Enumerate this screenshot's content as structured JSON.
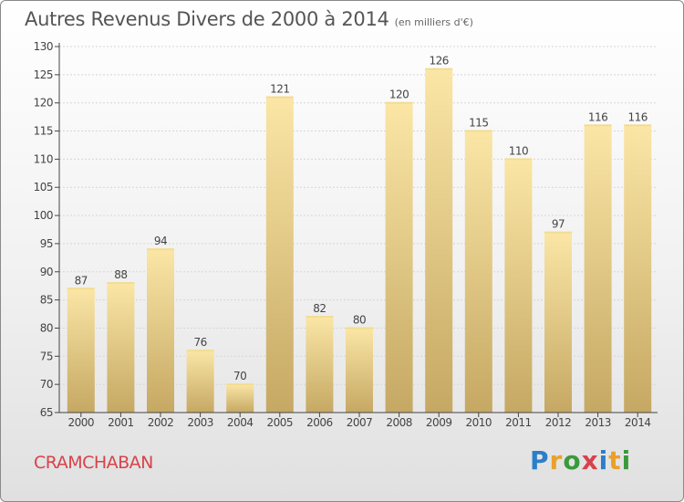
{
  "header": {
    "title": "Autres Revenus Divers de 2000 à 2014",
    "unit_note": "(en milliers d'€)"
  },
  "commune": "CRAMCHABAN",
  "logo": {
    "letters": [
      "P",
      "r",
      "o",
      "x",
      "i",
      "t",
      "i"
    ],
    "colors": [
      "#2b7fc9",
      "#e9a12a",
      "#3a9a3a",
      "#d8424a",
      "#2b7fc9",
      "#e9a12a",
      "#3a9a3a"
    ]
  },
  "colors": {
    "bar_top": "#fbe6a6",
    "bar_bottom": "#c5a863",
    "axis": "#444444",
    "grid": "#d6d6d6",
    "text": "#444444"
  },
  "chart_data": {
    "type": "bar",
    "categories": [
      "2000",
      "2001",
      "2002",
      "2003",
      "2004",
      "2005",
      "2006",
      "2007",
      "2008",
      "2009",
      "2010",
      "2011",
      "2012",
      "2013",
      "2014"
    ],
    "values": [
      87,
      88,
      94,
      76,
      70,
      121,
      82,
      80,
      120,
      126,
      115,
      110,
      97,
      116,
      116
    ],
    "data_labels": [
      "87",
      "88",
      "94",
      "76",
      "70",
      "121",
      "82",
      "80",
      "120",
      "126",
      "115",
      "110",
      "97",
      "116",
      "116"
    ],
    "title": "Autres Revenus Divers de 2000 à 2014",
    "xlabel": "",
    "ylabel": "",
    "ylim": [
      65,
      130
    ],
    "yticks": [
      "65",
      "70",
      "75",
      "80",
      "85",
      "90",
      "95",
      "100",
      "105",
      "110",
      "115",
      "120",
      "125",
      "130"
    ],
    "grid": true,
    "legend": "none"
  }
}
